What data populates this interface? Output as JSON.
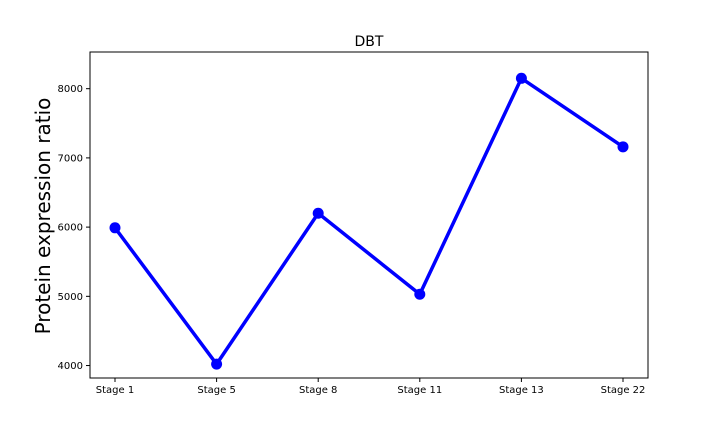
{
  "chart_data": {
    "type": "line",
    "title": "DBT",
    "xlabel": "",
    "ylabel": "Protein expression ratio",
    "categories": [
      "Stage 1",
      "Stage 5",
      "Stage 8",
      "Stage 11",
      "Stage 13",
      "Stage 22"
    ],
    "series": [
      {
        "values": [
          5990,
          4020,
          6200,
          5030,
          8150,
          7160
        ],
        "color": "#0000ff"
      }
    ],
    "yticks": [
      4000,
      5000,
      6000,
      7000,
      8000
    ],
    "ylim": [
      3820,
      8530
    ],
    "grid": false,
    "legend": "none"
  }
}
